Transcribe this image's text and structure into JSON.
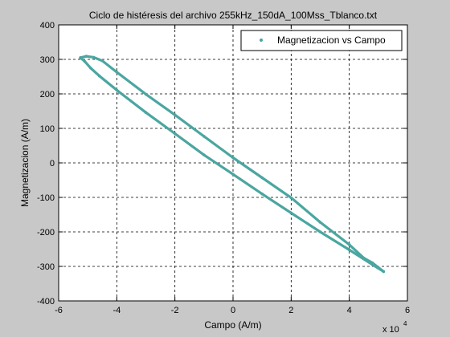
{
  "chart_data": {
    "type": "scatter",
    "title": "Ciclo de histéresis del archivo 255kHz_150dA_100Mss_Tblanco.txt",
    "xlabel": "Campo (A/m)",
    "ylabel": "Magnetizacion (A/m)",
    "x_exponent_label": "x 10",
    "x_exponent_power": "4",
    "x_scale": 10000,
    "xlim": [
      -60000,
      60000
    ],
    "ylim": [
      -400,
      400
    ],
    "x_ticks": [
      -60000,
      -40000,
      -20000,
      0,
      20000,
      40000,
      60000
    ],
    "x_tick_labels": [
      "-6",
      "-4",
      "-2",
      "0",
      "2",
      "4",
      "6"
    ],
    "y_ticks": [
      -400,
      -300,
      -200,
      -100,
      0,
      100,
      200,
      300,
      400
    ],
    "y_tick_labels": [
      "-400",
      "-300",
      "-200",
      "-100",
      "0",
      "100",
      "200",
      "300",
      "400"
    ],
    "grid": true,
    "legend_position": "top-right",
    "series": [
      {
        "name": "Magnetizacion vs Campo",
        "color": "#4aa6a0",
        "marker": "dot",
        "branches": [
          {
            "x": [
              51800,
              48000,
              40000,
              30000,
              20000,
              10000,
              0,
              -10000,
              -20000,
              -30000,
              -40000,
              -46000,
              -49000,
              -51000,
              -52500
            ],
            "y": [
              -315,
              -295,
              -252,
              -200,
              -145,
              -90,
              -33,
              23,
              85,
              146,
              211,
              252,
              275,
              294,
              305
            ]
          },
          {
            "x": [
              -52500,
              -50500,
              -48000,
              -45000,
              -40000,
              -30000,
              -20000,
              -10000,
              0,
              10000,
              20000,
              30000,
              40000,
              45000,
              48000,
              51800
            ],
            "y": [
              305,
              309,
              306,
              296,
              263,
              199,
              139,
              77,
              15,
              -43,
              -101,
              -172,
              -237,
              -276,
              -290,
              -315
            ]
          }
        ]
      }
    ]
  }
}
